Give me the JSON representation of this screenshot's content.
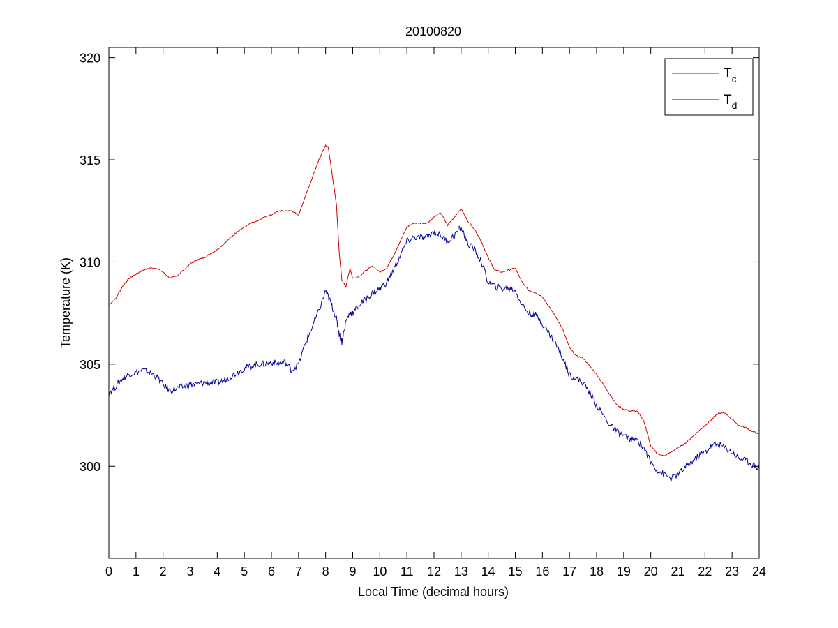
{
  "chart_data": {
    "type": "line",
    "title": "20100820",
    "xlabel": "Local Time (decimal hours)",
    "ylabel": "Temperature (K)",
    "xlim": [
      0,
      24
    ],
    "ylim": [
      295.5,
      320.5
    ],
    "xticks": [
      0,
      1,
      2,
      3,
      4,
      5,
      6,
      7,
      8,
      9,
      10,
      11,
      12,
      13,
      14,
      15,
      16,
      17,
      18,
      19,
      20,
      21,
      22,
      23,
      24
    ],
    "yticks": [
      300,
      305,
      310,
      315,
      320
    ],
    "grid": false,
    "legend": "top-right",
    "series": [
      {
        "name": "T",
        "subscript": "c",
        "color": "#cc0000",
        "x": [
          0,
          0.25,
          0.5,
          0.75,
          1,
          1.25,
          1.5,
          1.75,
          2,
          2.25,
          2.5,
          2.75,
          3,
          3.25,
          3.5,
          3.75,
          4,
          4.25,
          4.5,
          4.75,
          5,
          5.25,
          5.5,
          5.75,
          6,
          6.25,
          6.5,
          6.75,
          7,
          7.25,
          7.5,
          7.75,
          8,
          8.1,
          8.25,
          8.4,
          8.5,
          8.6,
          8.75,
          8.9,
          9,
          9.25,
          9.5,
          9.75,
          10,
          10.25,
          10.5,
          10.75,
          11,
          11.25,
          11.5,
          11.75,
          12,
          12.25,
          12.5,
          12.75,
          13,
          13.25,
          13.5,
          13.75,
          14,
          14.25,
          14.5,
          14.75,
          15,
          15.25,
          15.5,
          15.75,
          16,
          16.25,
          16.5,
          16.75,
          17,
          17.25,
          17.5,
          17.75,
          18,
          18.25,
          18.5,
          18.75,
          19,
          19.25,
          19.5,
          19.75,
          20,
          20.25,
          20.5,
          20.75,
          21,
          21.25,
          21.5,
          21.75,
          22,
          22.25,
          22.5,
          22.75,
          23,
          23.25,
          23.5,
          23.75,
          24
        ],
        "y": [
          307.9,
          308.2,
          308.8,
          309.2,
          309.4,
          309.6,
          309.7,
          309.7,
          309.5,
          309.2,
          309.3,
          309.6,
          309.9,
          310.1,
          310.2,
          310.4,
          310.6,
          310.9,
          311.2,
          311.5,
          311.7,
          311.9,
          312.0,
          312.2,
          312.3,
          312.5,
          312.5,
          312.5,
          312.3,
          313.2,
          314.1,
          315.0,
          315.7,
          315.6,
          314.2,
          312.8,
          310.5,
          309.1,
          308.8,
          309.7,
          309.2,
          309.3,
          309.6,
          309.8,
          309.5,
          309.7,
          310.3,
          311.0,
          311.7,
          311.9,
          311.9,
          311.9,
          312.2,
          312.4,
          311.8,
          312.2,
          312.6,
          312.0,
          311.6,
          311.0,
          310.2,
          309.6,
          309.5,
          309.6,
          309.7,
          309.0,
          308.6,
          308.5,
          308.3,
          307.8,
          307.3,
          306.7,
          305.8,
          305.4,
          305.3,
          304.9,
          304.5,
          304.0,
          303.5,
          303.0,
          302.8,
          302.7,
          302.7,
          302.2,
          301.0,
          300.6,
          300.5,
          300.7,
          300.9,
          301.1,
          301.4,
          301.7,
          302.0,
          302.3,
          302.6,
          302.6,
          302.3,
          302.0,
          301.9,
          301.7,
          301.6
        ]
      },
      {
        "name": "T",
        "subscript": "d",
        "color": "#000099",
        "x": [
          0,
          0.25,
          0.5,
          0.75,
          1,
          1.25,
          1.5,
          1.75,
          2,
          2.25,
          2.5,
          2.75,
          3,
          3.25,
          3.5,
          3.75,
          4,
          4.25,
          4.5,
          4.75,
          5,
          5.25,
          5.5,
          5.75,
          6,
          6.25,
          6.5,
          6.75,
          7,
          7.25,
          7.5,
          7.75,
          8,
          8.1,
          8.25,
          8.4,
          8.5,
          8.6,
          8.75,
          8.9,
          9,
          9.25,
          9.5,
          9.75,
          10,
          10.25,
          10.5,
          10.75,
          11,
          11.25,
          11.5,
          11.75,
          12,
          12.25,
          12.5,
          12.75,
          13,
          13.25,
          13.5,
          13.75,
          14,
          14.25,
          14.5,
          14.75,
          15,
          15.25,
          15.5,
          15.75,
          16,
          16.25,
          16.5,
          16.75,
          17,
          17.25,
          17.5,
          17.75,
          18,
          18.25,
          18.5,
          18.75,
          19,
          19.25,
          19.5,
          19.75,
          20,
          20.25,
          20.5,
          20.75,
          21,
          21.25,
          21.5,
          21.75,
          22,
          22.25,
          22.5,
          22.75,
          23,
          23.25,
          23.5,
          23.75,
          24
        ],
        "y": [
          303.6,
          303.9,
          304.3,
          304.5,
          304.6,
          304.7,
          304.6,
          304.4,
          304.0,
          303.7,
          303.8,
          303.9,
          304.0,
          304.0,
          304.1,
          304.1,
          304.1,
          304.2,
          304.4,
          304.6,
          304.8,
          304.9,
          305.0,
          305.0,
          305.1,
          305.0,
          305.1,
          304.7,
          305.0,
          306.0,
          306.8,
          307.6,
          308.6,
          308.3,
          307.8,
          307.2,
          306.5,
          306.1,
          307.1,
          307.5,
          307.5,
          307.9,
          308.2,
          308.5,
          308.7,
          309.0,
          309.6,
          310.3,
          311.0,
          311.2,
          311.2,
          311.2,
          311.5,
          311.3,
          311.0,
          311.3,
          311.7,
          310.9,
          310.6,
          310.0,
          309.0,
          308.8,
          308.7,
          308.7,
          308.6,
          307.9,
          307.5,
          307.4,
          307.0,
          306.5,
          306.0,
          305.3,
          304.5,
          304.3,
          304.1,
          303.6,
          303.0,
          302.5,
          302.0,
          301.7,
          301.5,
          301.3,
          301.3,
          300.9,
          300.2,
          299.8,
          299.6,
          299.4,
          299.6,
          299.9,
          300.2,
          300.5,
          300.7,
          301.0,
          301.1,
          300.9,
          300.7,
          300.4,
          300.3,
          300.1,
          299.9
        ]
      }
    ]
  }
}
